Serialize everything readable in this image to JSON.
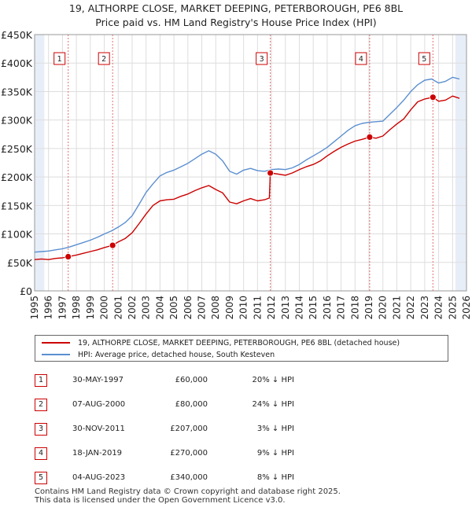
{
  "title_line1": "19, ALTHORPE CLOSE, MARKET DEEPING, PETERBOROUGH, PE6 8BL",
  "title_line2": "Price paid vs. HM Land Registry's House Price Index (HPI)",
  "colors": {
    "price_line": "#cc0000",
    "hpi_line": "#5b8fd0",
    "shade": "#e8eef8",
    "grid": "#dddddd",
    "vline": "#e07070",
    "marker_border": "#cc0000"
  },
  "chart_data": {
    "type": "line",
    "xlim": [
      1995,
      2026
    ],
    "ylim": [
      0,
      450000
    ],
    "x_ticks": [
      "1995",
      "1996",
      "1997",
      "1998",
      "1999",
      "2000",
      "2001",
      "2002",
      "2003",
      "2004",
      "2005",
      "2006",
      "2007",
      "2008",
      "2009",
      "2010",
      "2011",
      "2012",
      "2013",
      "2014",
      "2015",
      "2016",
      "2017",
      "2018",
      "2019",
      "2020",
      "2021",
      "2022",
      "2023",
      "2024",
      "2025",
      "2026"
    ],
    "y_ticks": [
      {
        "value": 0,
        "label": "£0"
      },
      {
        "value": 50000,
        "label": "£50K"
      },
      {
        "value": 100000,
        "label": "£100K"
      },
      {
        "value": 150000,
        "label": "£150K"
      },
      {
        "value": 200000,
        "label": "£200K"
      },
      {
        "value": 250000,
        "label": "£250K"
      },
      {
        "value": 300000,
        "label": "£300K"
      },
      {
        "value": 350000,
        "label": "£350K"
      },
      {
        "value": 400000,
        "label": "£400K"
      },
      {
        "value": 450000,
        "label": "£450K"
      }
    ],
    "shaded_regions": [
      [
        1995,
        1995.7
      ],
      [
        2025.2,
        2026
      ]
    ],
    "series": [
      {
        "name": "19, ALTHORPE CLOSE, MARKET DEEPING, PETERBOROUGH, PE6 8BL (detached house)",
        "color": "#cc0000",
        "points": [
          [
            1995,
            55000
          ],
          [
            1995.5,
            56000
          ],
          [
            1996,
            55000
          ],
          [
            1996.5,
            57000
          ],
          [
            1997,
            58000
          ],
          [
            1997.41,
            60000
          ],
          [
            1998,
            63000
          ],
          [
            1998.5,
            66000
          ],
          [
            1999,
            69000
          ],
          [
            1999.5,
            72000
          ],
          [
            2000,
            76000
          ],
          [
            2000.6,
            80000
          ],
          [
            2001,
            86000
          ],
          [
            2001.5,
            92000
          ],
          [
            2002,
            102000
          ],
          [
            2002.5,
            118000
          ],
          [
            2003,
            135000
          ],
          [
            2003.5,
            150000
          ],
          [
            2004,
            158000
          ],
          [
            2004.5,
            160000
          ],
          [
            2005,
            161000
          ],
          [
            2005.5,
            166000
          ],
          [
            2006,
            170000
          ],
          [
            2006.5,
            176000
          ],
          [
            2007,
            181000
          ],
          [
            2007.5,
            185000
          ],
          [
            2008,
            178000
          ],
          [
            2008.5,
            172000
          ],
          [
            2009,
            156000
          ],
          [
            2009.5,
            153000
          ],
          [
            2010,
            158000
          ],
          [
            2010.5,
            162000
          ],
          [
            2011,
            158000
          ],
          [
            2011.5,
            160000
          ],
          [
            2011.85,
            163000
          ],
          [
            2011.92,
            207000
          ],
          [
            2012.5,
            205000
          ],
          [
            2013,
            203000
          ],
          [
            2013.5,
            207000
          ],
          [
            2014,
            213000
          ],
          [
            2014.5,
            218000
          ],
          [
            2015,
            222000
          ],
          [
            2015.5,
            228000
          ],
          [
            2016,
            237000
          ],
          [
            2016.5,
            245000
          ],
          [
            2017,
            252000
          ],
          [
            2017.5,
            258000
          ],
          [
            2018,
            263000
          ],
          [
            2018.5,
            266000
          ],
          [
            2019.05,
            270000
          ],
          [
            2019.5,
            268000
          ],
          [
            2020,
            272000
          ],
          [
            2020.5,
            283000
          ],
          [
            2021,
            293000
          ],
          [
            2021.5,
            302000
          ],
          [
            2022,
            318000
          ],
          [
            2022.5,
            332000
          ],
          [
            2023,
            337000
          ],
          [
            2023.59,
            340000
          ],
          [
            2024,
            333000
          ],
          [
            2024.5,
            335000
          ],
          [
            2025,
            342000
          ],
          [
            2025.5,
            338000
          ]
        ]
      },
      {
        "name": "HPI: Average price, detached house, South Kesteven",
        "color": "#5b8fd0",
        "points": [
          [
            1995,
            68000
          ],
          [
            1995.5,
            69000
          ],
          [
            1996,
            70000
          ],
          [
            1996.5,
            72000
          ],
          [
            1997,
            74000
          ],
          [
            1997.5,
            77000
          ],
          [
            1998,
            81000
          ],
          [
            1998.5,
            85000
          ],
          [
            1999,
            89000
          ],
          [
            1999.5,
            94000
          ],
          [
            2000,
            100000
          ],
          [
            2000.5,
            105000
          ],
          [
            2001,
            112000
          ],
          [
            2001.5,
            120000
          ],
          [
            2002,
            132000
          ],
          [
            2002.5,
            152000
          ],
          [
            2003,
            173000
          ],
          [
            2003.5,
            188000
          ],
          [
            2004,
            202000
          ],
          [
            2004.5,
            208000
          ],
          [
            2005,
            212000
          ],
          [
            2005.5,
            218000
          ],
          [
            2006,
            224000
          ],
          [
            2006.5,
            232000
          ],
          [
            2007,
            240000
          ],
          [
            2007.5,
            246000
          ],
          [
            2008,
            240000
          ],
          [
            2008.5,
            228000
          ],
          [
            2009,
            210000
          ],
          [
            2009.5,
            205000
          ],
          [
            2010,
            212000
          ],
          [
            2010.5,
            215000
          ],
          [
            2011,
            211000
          ],
          [
            2011.5,
            210000
          ],
          [
            2012,
            213000
          ],
          [
            2012.5,
            214000
          ],
          [
            2013,
            213000
          ],
          [
            2013.5,
            216000
          ],
          [
            2014,
            222000
          ],
          [
            2014.5,
            230000
          ],
          [
            2015,
            237000
          ],
          [
            2015.5,
            244000
          ],
          [
            2016,
            252000
          ],
          [
            2016.5,
            262000
          ],
          [
            2017,
            272000
          ],
          [
            2017.5,
            282000
          ],
          [
            2018,
            290000
          ],
          [
            2018.5,
            294000
          ],
          [
            2019,
            296000
          ],
          [
            2019.5,
            297000
          ],
          [
            2020,
            298000
          ],
          [
            2020.5,
            310000
          ],
          [
            2021,
            322000
          ],
          [
            2021.5,
            335000
          ],
          [
            2022,
            350000
          ],
          [
            2022.5,
            362000
          ],
          [
            2023,
            370000
          ],
          [
            2023.5,
            372000
          ],
          [
            2024,
            365000
          ],
          [
            2024.5,
            368000
          ],
          [
            2025,
            375000
          ],
          [
            2025.5,
            372000
          ]
        ]
      }
    ],
    "sales": [
      {
        "n": "1",
        "x": 1997.41,
        "date": "30-MAY-1997",
        "price": 60000,
        "price_label": "£60,000",
        "hpi": "20% ↓ HPI"
      },
      {
        "n": "2",
        "x": 2000.6,
        "date": "07-AUG-2000",
        "price": 80000,
        "price_label": "£80,000",
        "hpi": "24% ↓ HPI"
      },
      {
        "n": "3",
        "x": 2011.92,
        "date": "30-NOV-2011",
        "price": 207000,
        "price_label": "£207,000",
        "hpi": "3% ↓ HPI"
      },
      {
        "n": "4",
        "x": 2019.05,
        "date": "18-JAN-2019",
        "price": 270000,
        "price_label": "£270,000",
        "hpi": "9% ↓ HPI"
      },
      {
        "n": "5",
        "x": 2023.59,
        "date": "04-AUG-2023",
        "price": 340000,
        "price_label": "£340,000",
        "hpi": "8% ↓ HPI"
      }
    ]
  },
  "legend": {
    "price_label": "19, ALTHORPE CLOSE, MARKET DEEPING, PETERBOROUGH, PE6 8BL (detached house)",
    "hpi_label": "HPI: Average price, detached house, South Kesteven"
  },
  "footer": {
    "line1": "Contains HM Land Registry data © Crown copyright and database right 2025.",
    "line2": "This data is licensed under the Open Government Licence v3.0."
  }
}
